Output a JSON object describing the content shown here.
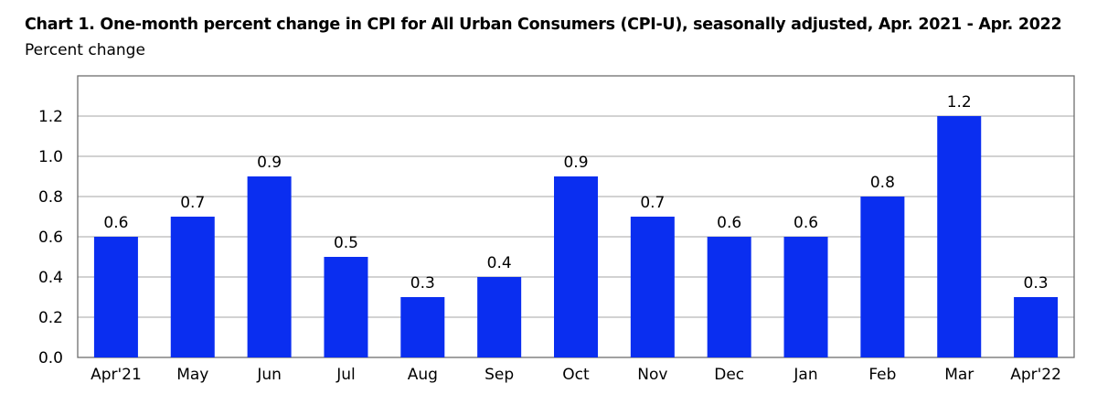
{
  "header": {
    "title": "Chart 1. One-month percent change in CPI for All Urban Consumers (CPI-U), seasonally adjusted, Apr. 2021 - Apr. 2022",
    "subtitle": "Percent change"
  },
  "colors": {
    "bar": "#0a2ef0",
    "grid": "#b8b8b8",
    "frame": "#6e6e6e"
  },
  "chart_data": {
    "type": "bar",
    "title": "Chart 1. One-month percent change in CPI for All Urban Consumers (CPI-U), seasonally adjusted, Apr. 2021 - Apr. 2022",
    "ylabel": "Percent change",
    "xlabel": "",
    "categories": [
      "Apr'21",
      "May",
      "Jun",
      "Jul",
      "Aug",
      "Sep",
      "Oct",
      "Nov",
      "Dec",
      "Jan",
      "Feb",
      "Mar",
      "Apr'22"
    ],
    "values": [
      0.6,
      0.7,
      0.9,
      0.5,
      0.3,
      0.4,
      0.9,
      0.7,
      0.6,
      0.6,
      0.8,
      1.2,
      0.3
    ],
    "value_labels": [
      "0.6",
      "0.7",
      "0.9",
      "0.5",
      "0.3",
      "0.4",
      "0.9",
      "0.7",
      "0.6",
      "0.6",
      "0.8",
      "1.2",
      "0.3"
    ],
    "ylim": [
      0,
      1.4
    ],
    "yticks": [
      0.0,
      0.2,
      0.4,
      0.6,
      0.8,
      1.0,
      1.2
    ],
    "ytick_labels": [
      "0.0",
      "0.2",
      "0.4",
      "0.6",
      "0.8",
      "1.0",
      "1.2"
    ],
    "grid": true,
    "legend": "none"
  }
}
